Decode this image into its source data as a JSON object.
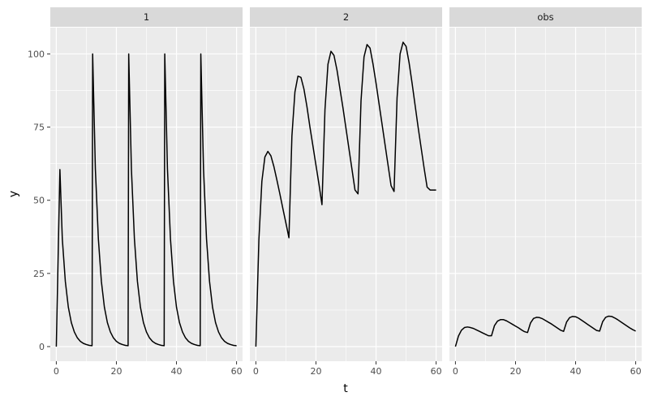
{
  "chart_data": {
    "type": "line",
    "xlabel": "t",
    "ylabel": "y",
    "xlim": [
      -2,
      62
    ],
    "ylim": [
      -5,
      109
    ],
    "x_ticks": [
      0,
      20,
      40,
      60
    ],
    "y_ticks": [
      0,
      25,
      50,
      75,
      100
    ],
    "x_tick_labels": [
      "0",
      "20",
      "40",
      "60"
    ],
    "y_tick_labels": [
      "0",
      "25",
      "50",
      "75",
      "100"
    ],
    "grid": true,
    "legend": "none",
    "line_color": "#000000",
    "panel_background": "#ebebeb",
    "strip_background": "#d9d9d9",
    "facets": [
      {
        "strip": "1",
        "x": [
          0,
          1.2,
          2,
          3,
          4,
          5,
          6,
          7,
          8,
          9,
          10,
          11,
          11.9,
          12.1,
          13,
          14,
          15,
          16,
          17,
          18,
          19,
          20,
          21,
          22,
          23,
          23.9,
          24.1,
          25,
          26,
          27,
          28,
          29,
          30,
          31,
          32,
          33,
          34,
          35,
          35.9,
          36.1,
          37,
          38,
          39,
          40,
          41,
          42,
          43,
          44,
          45,
          46,
          47,
          47.9,
          48.1,
          49,
          50,
          51,
          52,
          53,
          54,
          55,
          56,
          57,
          58,
          59,
          60
        ],
        "y": [
          0,
          60.5,
          36.8,
          22.3,
          13.5,
          8.2,
          5.0,
          3.0,
          1.8,
          1.1,
          0.7,
          0.4,
          0.3,
          100,
          60.7,
          36.8,
          22.3,
          13.5,
          8.2,
          5.0,
          3.0,
          1.8,
          1.1,
          0.7,
          0.4,
          0.3,
          100,
          60.7,
          36.8,
          22.3,
          13.5,
          8.2,
          5.0,
          3.0,
          1.8,
          1.1,
          0.7,
          0.4,
          0.3,
          100,
          60.7,
          36.8,
          22.3,
          13.5,
          8.2,
          5.0,
          3.0,
          1.8,
          1.1,
          0.7,
          0.4,
          0.3,
          100,
          60.7,
          36.8,
          22.3,
          13.5,
          8.2,
          5.0,
          3.0,
          1.8,
          1.1,
          0.7,
          0.4,
          0.3
        ]
      },
      {
        "strip": "2",
        "x": [
          0,
          1,
          2,
          3,
          4,
          5,
          6,
          7,
          8,
          9,
          10,
          11,
          12,
          13,
          14,
          15,
          16,
          17,
          18,
          19,
          20,
          21,
          22,
          23,
          24,
          25,
          26,
          27,
          28,
          29,
          30,
          31,
          32,
          33,
          34,
          35,
          36,
          37,
          38,
          39,
          40,
          41,
          42,
          43,
          44,
          45,
          46,
          47,
          48,
          49,
          50,
          51,
          52,
          53,
          54,
          55,
          56,
          57,
          58,
          59,
          60
        ],
        "y": [
          0,
          36.4,
          56.5,
          64.8,
          66.7,
          65.2,
          61.5,
          56.9,
          52.1,
          47.1,
          42.2,
          37.2,
          72,
          87,
          92.4,
          92,
          88,
          82,
          75,
          68.5,
          62,
          55.5,
          48.5,
          81,
          96.5,
          100.9,
          99.5,
          94.5,
          88,
          81.5,
          74.5,
          67.5,
          60.5,
          53.5,
          52.2,
          84,
          99,
          103.2,
          102,
          96.5,
          90,
          83,
          76,
          69,
          62,
          55,
          53,
          85,
          100,
          104,
          102.6,
          97,
          90,
          82.5,
          75,
          68,
          61,
          54.5,
          53.5,
          53.5,
          53.5
        ],
        "x_override": [
          0,
          1,
          2,
          3,
          4,
          5,
          6,
          7,
          8,
          9,
          10,
          11,
          12,
          13,
          14,
          15,
          16,
          17,
          18,
          19,
          20,
          21,
          22,
          23,
          24,
          25,
          26,
          27,
          28,
          29,
          30,
          31,
          32,
          33,
          34,
          35,
          36,
          37,
          38,
          39,
          40,
          41,
          42,
          43,
          44,
          45,
          46,
          47,
          48,
          49,
          50,
          51,
          52,
          53,
          54,
          55,
          56,
          57,
          58,
          59,
          60
        ]
      },
      {
        "strip": "obs",
        "x": [
          0,
          1,
          2,
          3,
          4,
          5,
          6,
          7,
          8,
          9,
          10,
          11,
          12,
          13,
          14,
          15,
          16,
          17,
          18,
          19,
          20,
          21,
          22,
          23,
          24,
          25,
          26,
          27,
          28,
          29,
          30,
          31,
          32,
          33,
          34,
          35,
          36,
          37,
          38,
          39,
          40,
          41,
          42,
          43,
          44,
          45,
          46,
          47,
          48,
          49,
          50,
          51,
          52,
          53,
          54,
          55,
          56,
          57,
          58,
          59,
          60
        ],
        "y": [
          0,
          3.6,
          5.6,
          6.5,
          6.7,
          6.5,
          6.2,
          5.7,
          5.2,
          4.7,
          4.2,
          3.7,
          3.7,
          7.2,
          8.7,
          9.2,
          9.2,
          8.8,
          8.2,
          7.6,
          7.0,
          6.4,
          5.7,
          5.1,
          4.8,
          8.1,
          9.6,
          10.0,
          9.9,
          9.5,
          8.9,
          8.3,
          7.7,
          7.0,
          6.3,
          5.6,
          5.2,
          8.4,
          9.9,
          10.3,
          10.2,
          9.7,
          9.0,
          8.3,
          7.6,
          6.9,
          6.2,
          5.5,
          5.3,
          8.5,
          10.0,
          10.4,
          10.3,
          9.8,
          9.2,
          8.5,
          7.8,
          7.1,
          6.4,
          5.8,
          5.3
        ]
      }
    ]
  }
}
